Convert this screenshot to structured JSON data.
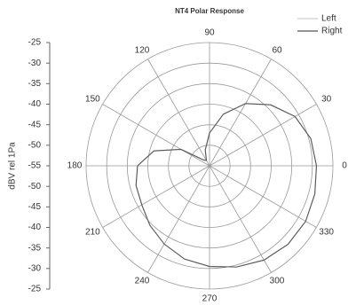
{
  "chart_data": {
    "type": "polar",
    "title": "NT4 Polar Response",
    "ylabel": "dBV rel 1Pa",
    "theta": [
      0,
      15,
      30,
      45,
      60,
      75,
      90,
      105,
      120,
      135,
      150,
      165,
      180,
      195,
      210,
      225,
      240,
      255,
      270,
      285,
      300,
      315,
      330,
      345,
      360
    ],
    "series": [
      {
        "name": "Left",
        "color": "#cfcfcf",
        "values": [
          -29,
          -29.5,
          -31,
          -34,
          -37.5,
          -42,
          -47,
          -51,
          -53.5,
          -53,
          -47,
          -41,
          -37.5,
          -36.5,
          -36,
          -34.5,
          -33,
          -31.5,
          -30.5,
          -29.5,
          -28.5,
          -28,
          -28,
          -28.5,
          -29
        ]
      },
      {
        "name": "Right",
        "color": "#555555",
        "values": [
          -29,
          -29.5,
          -31,
          -34,
          -37.5,
          -42,
          -47,
          -51,
          -53.5,
          -53,
          -47,
          -41,
          -37.5,
          -36.5,
          -36,
          -34.5,
          -33,
          -31.5,
          -30.5,
          -29.5,
          -28.5,
          -28,
          -28,
          -28.5,
          -29
        ]
      }
    ],
    "rlim": [
      -55,
      -25
    ],
    "rticks": [
      -25,
      -30,
      -35,
      -40,
      -45,
      -50,
      -55
    ],
    "thetaticks": [
      0,
      30,
      60,
      90,
      120,
      150,
      180,
      210,
      240,
      270,
      300,
      330
    ],
    "grid": true,
    "legend": "upper right"
  }
}
